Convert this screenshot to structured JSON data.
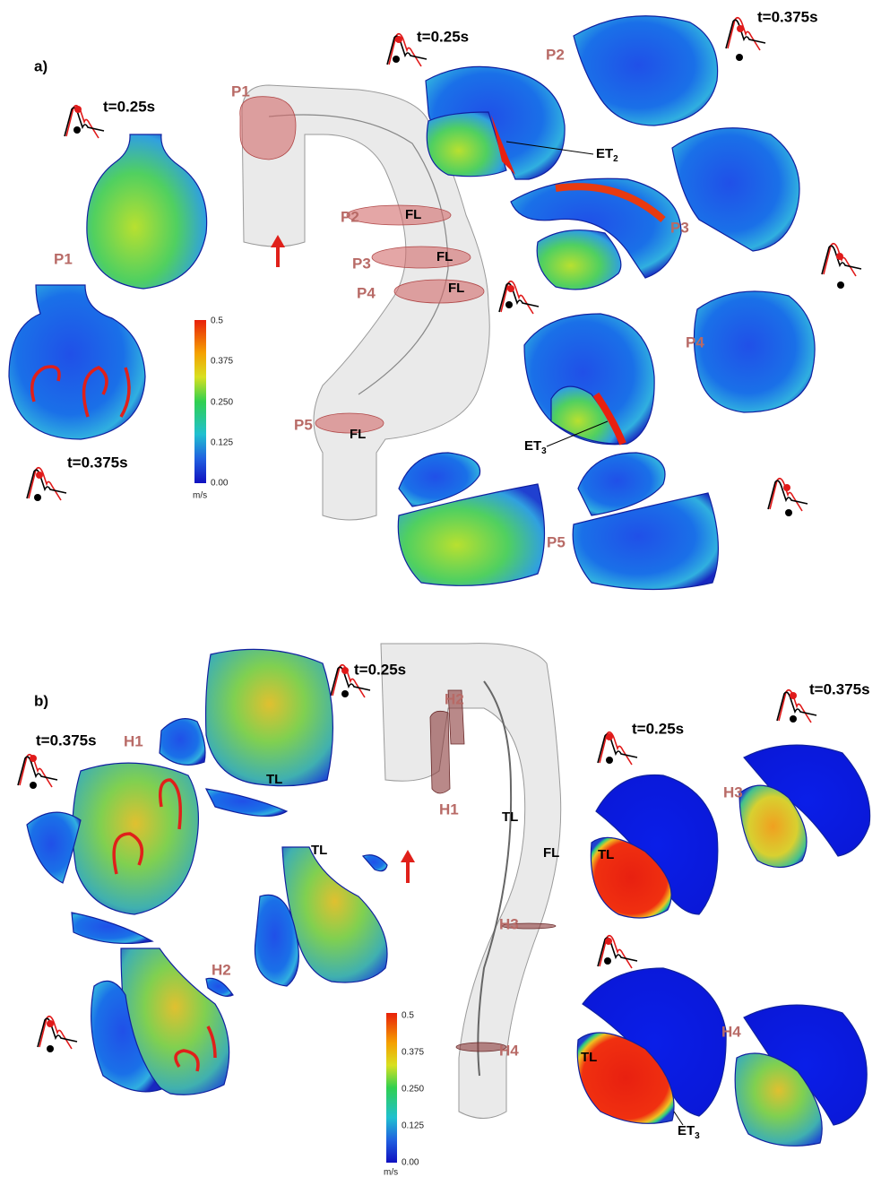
{
  "panel_a": {
    "label": "a)",
    "times": [
      "t=0.25s",
      "t=0.375s",
      "t=0.25s",
      "t=0.375s"
    ],
    "sections": [
      "P1",
      "P1",
      "P2",
      "P2",
      "P3",
      "P3",
      "P4",
      "P4",
      "P5",
      "P5"
    ],
    "lumen": [
      "FL",
      "FL",
      "FL",
      "FL"
    ],
    "tears": [
      {
        "text": "ET",
        "sub": "2"
      },
      {
        "text": "ET",
        "sub": "3"
      }
    ],
    "colorbar": {
      "ticks": [
        "0.5",
        "0.375",
        "0.250",
        "0.125",
        "0.00"
      ],
      "unit": "m/s"
    }
  },
  "panel_b": {
    "label": "b)",
    "times": [
      "t=0.375s",
      "t=0.25s",
      "t=0.25s",
      "t=0.375s"
    ],
    "sections": [
      "H1",
      "H1",
      "H2",
      "H2",
      "H3",
      "H3",
      "H4",
      "H4"
    ],
    "lumen": [
      "TL",
      "TL",
      "TL",
      "TL",
      "TL",
      "FL"
    ],
    "tears": [
      {
        "text": "ET",
        "sub": "3"
      }
    ],
    "colorbar": {
      "ticks": [
        "0.5",
        "0.375",
        "0.250",
        "0.125",
        "0.00"
      ],
      "unit": "m/s"
    }
  }
}
